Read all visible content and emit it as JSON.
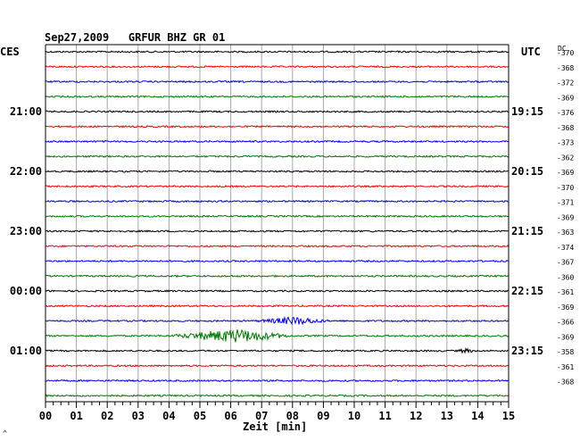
{
  "header": {
    "title": "Sep27,2009   GRFUR BHZ GR 01",
    "left_zone": "CES",
    "right_zone": "UTC",
    "dc_label": "DC"
  },
  "colors": {
    "trace_cycle": [
      "#000000",
      "#ff0000",
      "#0000ff",
      "#007a00"
    ],
    "grid": "#a8a8a8",
    "frame": "#000000"
  },
  "chart_data": {
    "type": "line",
    "title": "Sep27,2009   GRFUR BHZ GR 01",
    "xlabel": "Zeit [min]",
    "xlim": [
      0,
      15
    ],
    "x_ticks": [
      "00",
      "01",
      "02",
      "03",
      "04",
      "05",
      "06",
      "07",
      "08",
      "09",
      "10",
      "11",
      "12",
      "13",
      "14",
      "15"
    ],
    "minutes_per_trace": 15,
    "n_traces": 24,
    "left_time_labels": [
      {
        "trace": 4,
        "label": "21:00"
      },
      {
        "trace": 8,
        "label": "22:00"
      },
      {
        "trace": 12,
        "label": "23:00"
      },
      {
        "trace": 16,
        "label": "00:00"
      },
      {
        "trace": 20,
        "label": "01:00"
      }
    ],
    "right_time_labels": [
      {
        "trace": 4,
        "label": "19:15"
      },
      {
        "trace": 8,
        "label": "20:15"
      },
      {
        "trace": 12,
        "label": "21:15"
      },
      {
        "trace": 16,
        "label": "22:15"
      },
      {
        "trace": 20,
        "label": "23:15"
      }
    ],
    "dc_offsets": [
      "-370",
      "-368",
      "-372",
      "-369",
      "-376",
      "-368",
      "-373",
      "-362",
      "-369",
      "-370",
      "-371",
      "-369",
      "-363",
      "-374",
      "-367",
      "-360",
      "-361",
      "-369",
      "-366",
      "-369",
      "-358",
      "-361",
      "-368",
      ""
    ],
    "events": [
      {
        "trace": 18,
        "start_min": 6.8,
        "end_min": 9.2,
        "peak_min": 8.1,
        "amplitude": 4
      },
      {
        "trace": 19,
        "start_min": 4.0,
        "end_min": 8.0,
        "peak_min": 6.2,
        "amplitude": 7
      },
      {
        "trace": 20,
        "start_min": 13.3,
        "end_min": 13.9,
        "peak_min": 13.6,
        "amplitude": 2
      }
    ]
  },
  "footer": {
    "corner_mark": "^"
  }
}
